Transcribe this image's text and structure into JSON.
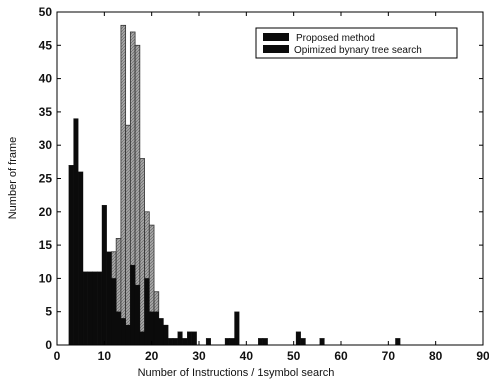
{
  "chart_data": {
    "type": "bar",
    "title": "",
    "xlabel": "Number of Instructions /  1symbol search",
    "ylabel": "Number of frame",
    "xlim": [
      0,
      90
    ],
    "ylim": [
      0,
      50
    ],
    "xticks": [
      0,
      10,
      20,
      30,
      40,
      50,
      60,
      70,
      80,
      90
    ],
    "yticks": [
      0,
      5,
      10,
      15,
      20,
      25,
      30,
      35,
      40,
      45,
      50
    ],
    "grid": false,
    "legend_position": "top-right",
    "bar_width": 1,
    "colors": {
      "proposed": "#0b0b0b",
      "tree": "#a8a8a8",
      "frame": "#000000"
    },
    "series": [
      {
        "name": "Opimized bynary tree search",
        "x": [
          12,
          13,
          14,
          15,
          16,
          17,
          18,
          19,
          20,
          21
        ],
        "values": [
          14,
          16,
          48,
          33,
          47,
          45,
          28,
          20,
          18,
          8
        ]
      },
      {
        "name": "Proposed  method",
        "x": [
          3,
          4,
          5,
          6,
          7,
          8,
          9,
          10,
          11,
          12,
          13,
          14,
          15,
          16,
          17,
          18,
          19,
          20,
          21,
          22,
          23,
          24,
          25,
          26,
          27,
          28,
          29,
          32,
          36,
          37,
          38,
          43,
          44,
          51,
          52,
          56,
          72
        ],
        "values": [
          27,
          34,
          26,
          11,
          11,
          11,
          11,
          21,
          14,
          10,
          5,
          4,
          3,
          12,
          9,
          2,
          10,
          5,
          5,
          4,
          3,
          1,
          1,
          2,
          1,
          2,
          2,
          1,
          1,
          1,
          5,
          1,
          1,
          2,
          1,
          1,
          1
        ]
      }
    ]
  }
}
